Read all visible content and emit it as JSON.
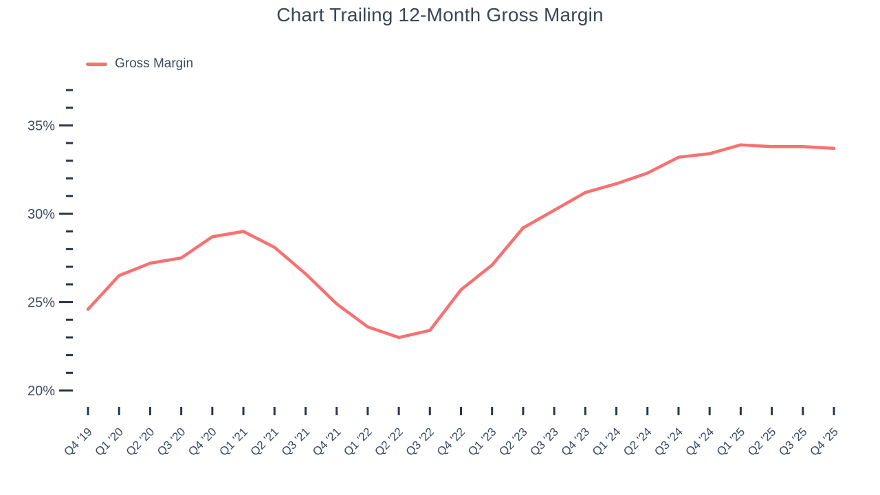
{
  "title": "Chart Trailing 12-Month Gross Margin",
  "legend": {
    "items": [
      {
        "label": "Gross Margin",
        "color": "#f87171"
      }
    ]
  },
  "chart_data": {
    "type": "line",
    "title": "Chart Trailing 12-Month Gross Margin",
    "categories": [
      "Q4 '19",
      "Q1 '20",
      "Q2 '20",
      "Q3 '20",
      "Q4 '20",
      "Q1 '21",
      "Q2 '21",
      "Q3 '21",
      "Q4 '21",
      "Q1 '22",
      "Q2 '22",
      "Q3 '22",
      "Q4 '22",
      "Q1 '23",
      "Q2 '23",
      "Q3 '23",
      "Q4 '23",
      "Q1 '24",
      "Q2 '24",
      "Q3 '24",
      "Q4 '24",
      "Q1 '25",
      "Q2 '25",
      "Q3 '25",
      "Q4 '25"
    ],
    "series": [
      {
        "name": "Gross Margin",
        "color": "#f87171",
        "values": [
          24.6,
          26.5,
          27.2,
          27.5,
          28.7,
          29.0,
          28.1,
          26.6,
          24.9,
          23.6,
          23.0,
          23.4,
          25.7,
          27.1,
          29.2,
          30.2,
          31.2,
          31.7,
          32.3,
          33.2,
          33.4,
          33.9,
          33.8,
          33.8,
          33.7
        ]
      }
    ],
    "xlabel": "",
    "ylabel": "",
    "y_axis": {
      "min": 20,
      "max": 37,
      "major_step": 5,
      "minor_step": 1,
      "major_tick_labels": [
        "20%",
        "25%",
        "30%",
        "35%"
      ],
      "tick_suffix": "%"
    },
    "grid": false,
    "legend_position": "top-left"
  },
  "colors": {
    "line": "#f87171",
    "text": "#3d4b5e",
    "title": "#3a4657",
    "tick": "#2b3648",
    "background": "#ffffff"
  }
}
